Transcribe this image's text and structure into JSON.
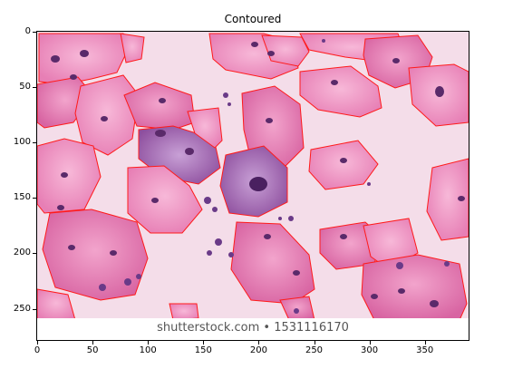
{
  "title": "Contoured",
  "axes": {
    "x_ticks": [
      "0",
      "50",
      "100",
      "150",
      "200",
      "250",
      "300",
      "350"
    ],
    "y_ticks": [
      "0",
      "50",
      "100",
      "150",
      "200",
      "250"
    ]
  },
  "image": {
    "description_icon": "cell-microscopy-image",
    "contour_color": "#ff0000",
    "background_color": "#f3dbe8",
    "watermark": "shutterstock.com • 1531116170"
  }
}
